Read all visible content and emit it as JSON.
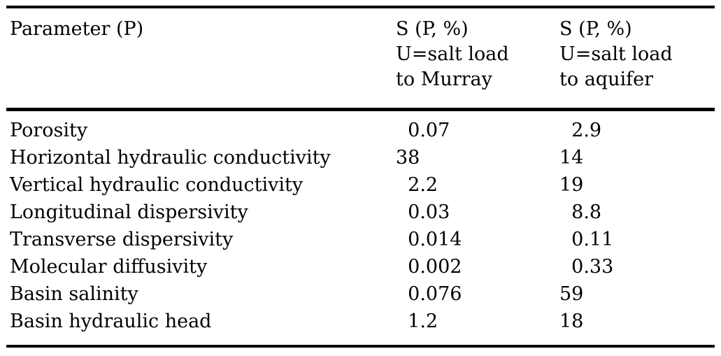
{
  "table": {
    "header": {
      "col1": [
        "Parameter (P)"
      ],
      "col2": [
        "S (P, %)",
        "U=salt load",
        "to Murray"
      ],
      "col3": [
        "S (P, %)",
        "U=salt load",
        "to aquifer"
      ]
    },
    "rows": [
      [
        "Porosity",
        "0.07",
        "2.9"
      ],
      [
        "Horizontal hydraulic conductivity",
        "38",
        "14"
      ],
      [
        "Vertical hydraulic conductivity",
        "2.2",
        "19"
      ],
      [
        "Longitudinal dispersivity",
        "0.03",
        "8.8"
      ],
      [
        "Transverse dispersivity",
        "0.014",
        "0.11"
      ],
      [
        "Molecular diffusivity",
        "0.002",
        "0.33"
      ],
      [
        "Basin salinity",
        "0.076",
        "59"
      ],
      [
        "Basin hydraulic head",
        "1.2",
        "18"
      ]
    ],
    "colors": {
      "text": "#000000",
      "background": "#ffffff",
      "rule": "#000000"
    }
  }
}
